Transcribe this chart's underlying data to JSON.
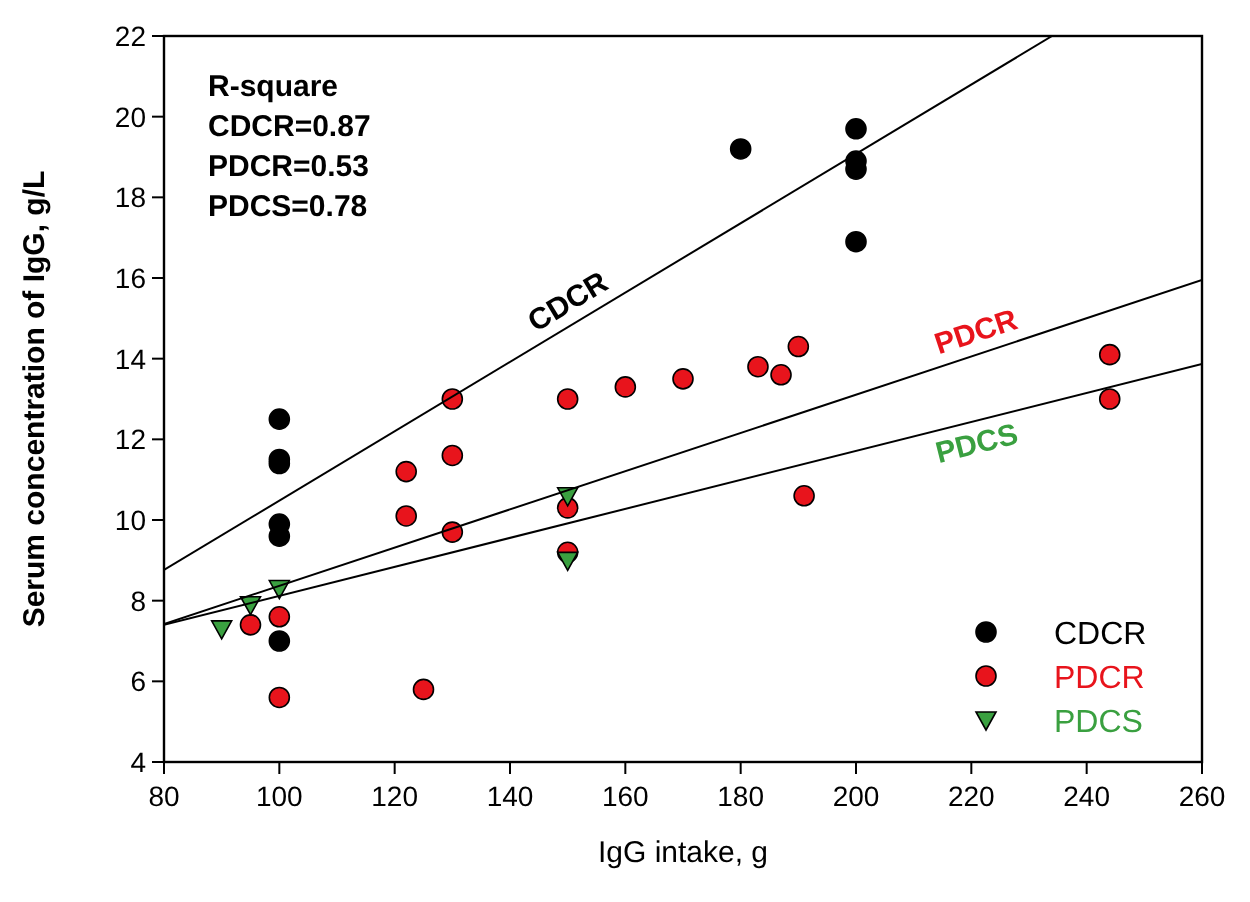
{
  "chart_data": {
    "type": "scatter",
    "xlabel": "IgG intake, g",
    "ylabel": "Serum concentration of IgG, g/L",
    "xlim": [
      80,
      260
    ],
    "xticks": [
      80,
      100,
      120,
      140,
      160,
      180,
      200,
      220,
      240,
      260
    ],
    "ylim": [
      4,
      22
    ],
    "yticks": [
      4,
      6,
      8,
      10,
      12,
      14,
      16,
      18,
      20,
      22
    ],
    "grid": false,
    "legend": "bottom right",
    "series": [
      {
        "name": "CDCR",
        "color": "#000000",
        "marker": "circle",
        "x": [
          100,
          100,
          100,
          100,
          100,
          100,
          180,
          200,
          200,
          200,
          200
        ],
        "values": [
          12.5,
          11.5,
          11.4,
          9.9,
          9.6,
          7.0,
          19.2,
          19.7,
          18.9,
          18.7,
          16.9
        ]
      },
      {
        "name": "PDCR",
        "color": "#e8141c",
        "marker": "circle",
        "x": [
          95,
          100,
          100,
          122,
          122,
          125,
          130,
          130,
          130,
          150,
          150,
          150,
          160,
          170,
          183,
          187,
          190,
          191,
          244,
          244
        ],
        "values": [
          7.4,
          7.6,
          5.6,
          11.2,
          10.1,
          5.8,
          13.0,
          11.6,
          9.7,
          13.0,
          10.3,
          9.2,
          13.3,
          13.5,
          13.8,
          13.6,
          14.3,
          10.6,
          14.1,
          13.0
        ]
      },
      {
        "name": "PDCS",
        "color": "#3aa040",
        "marker": "triangle",
        "x": [
          90,
          95,
          100,
          150,
          150
        ],
        "values": [
          7.3,
          7.9,
          8.3,
          10.6,
          9.0
        ]
      },
      {
        "type": "line",
        "color": "#000000",
        "marker": "none",
        "x": [
          80,
          234
        ],
        "values": [
          8.76,
          22
        ]
      },
      {
        "type": "line",
        "color": "#000000",
        "marker": "none",
        "x": [
          80,
          260
        ],
        "values": [
          7.42,
          15.95
        ]
      },
      {
        "type": "line",
        "color": "#000000",
        "marker": "none",
        "x": [
          80,
          260
        ],
        "values": [
          7.4,
          13.87
        ]
      }
    ],
    "annotations": [
      "R-square\nCDCR=0.87\nPDCR=0.53\nPDCS=0.78",
      {
        "text": "CDCR",
        "x": 152,
        "y": 14.95
      },
      {
        "text": "PDCR",
        "x": 222,
        "y": 14.15
      },
      {
        "text": "PDCS",
        "x": 220,
        "y": 12.43
      }
    ]
  }
}
